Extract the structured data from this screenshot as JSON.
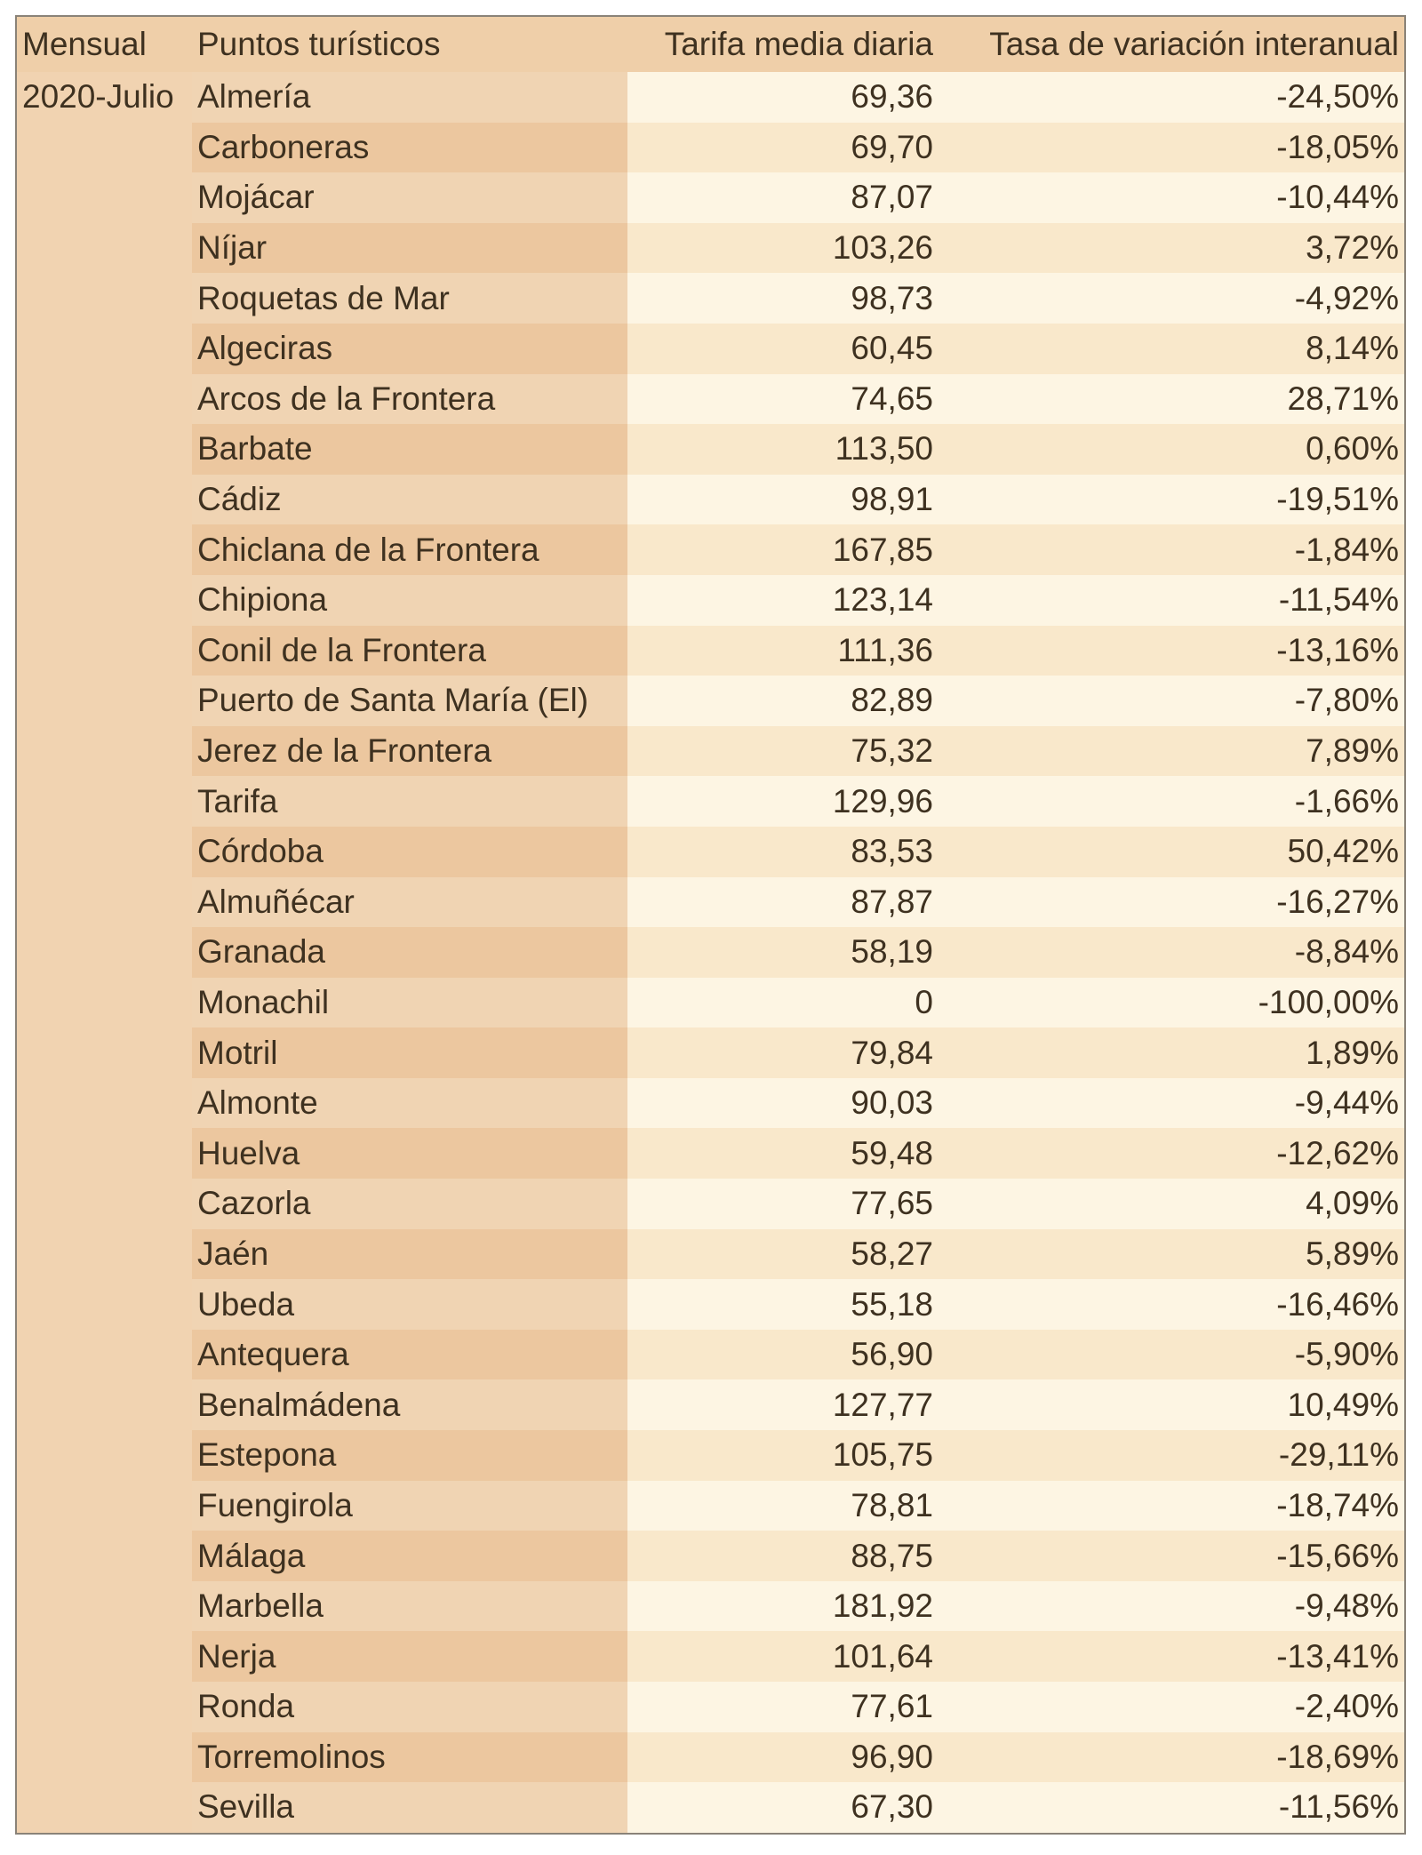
{
  "header": {
    "mensual": "Mensual",
    "puntos": "Puntos turísticos",
    "tarifa": "Tarifa media diaria",
    "tasa": "Tasa de variación interanual"
  },
  "period": "2020-Julio",
  "rows": [
    {
      "name": "Almería",
      "tarifa": "69,36",
      "tasa": "-24,50%"
    },
    {
      "name": "Carboneras",
      "tarifa": "69,70",
      "tasa": "-18,05%"
    },
    {
      "name": "Mojácar",
      "tarifa": "87,07",
      "tasa": "-10,44%"
    },
    {
      "name": "Níjar",
      "tarifa": "103,26",
      "tasa": "3,72%"
    },
    {
      "name": "Roquetas de Mar",
      "tarifa": "98,73",
      "tasa": "-4,92%"
    },
    {
      "name": "Algeciras",
      "tarifa": "60,45",
      "tasa": "8,14%"
    },
    {
      "name": "Arcos de la Frontera",
      "tarifa": "74,65",
      "tasa": "28,71%"
    },
    {
      "name": "Barbate",
      "tarifa": "113,50",
      "tasa": "0,60%"
    },
    {
      "name": "Cádiz",
      "tarifa": "98,91",
      "tasa": "-19,51%"
    },
    {
      "name": "Chiclana de la Frontera",
      "tarifa": "167,85",
      "tasa": "-1,84%"
    },
    {
      "name": "Chipiona",
      "tarifa": "123,14",
      "tasa": "-11,54%"
    },
    {
      "name": "Conil de la Frontera",
      "tarifa": "111,36",
      "tasa": "-13,16%"
    },
    {
      "name": "Puerto de Santa María (El)",
      "tarifa": "82,89",
      "tasa": "-7,80%"
    },
    {
      "name": "Jerez de la Frontera",
      "tarifa": "75,32",
      "tasa": "7,89%"
    },
    {
      "name": "Tarifa",
      "tarifa": "129,96",
      "tasa": "-1,66%"
    },
    {
      "name": "Córdoba",
      "tarifa": "83,53",
      "tasa": "50,42%"
    },
    {
      "name": "Almuñécar",
      "tarifa": "87,87",
      "tasa": "-16,27%"
    },
    {
      "name": "Granada",
      "tarifa": "58,19",
      "tasa": "-8,84%"
    },
    {
      "name": "Monachil",
      "tarifa": "0",
      "tasa": "-100,00%"
    },
    {
      "name": "Motril",
      "tarifa": "79,84",
      "tasa": "1,89%"
    },
    {
      "name": "Almonte",
      "tarifa": "90,03",
      "tasa": "-9,44%"
    },
    {
      "name": "Huelva",
      "tarifa": "59,48",
      "tasa": "-12,62%"
    },
    {
      "name": "Cazorla",
      "tarifa": "77,65",
      "tasa": "4,09%"
    },
    {
      "name": "Jaén",
      "tarifa": "58,27",
      "tasa": "5,89%"
    },
    {
      "name": "Ubeda",
      "tarifa": "55,18",
      "tasa": "-16,46%"
    },
    {
      "name": "Antequera",
      "tarifa": "56,90",
      "tasa": "-5,90%"
    },
    {
      "name": "Benalmádena",
      "tarifa": "127,77",
      "tasa": "10,49%"
    },
    {
      "name": "Estepona",
      "tarifa": "105,75",
      "tasa": "-29,11%"
    },
    {
      "name": "Fuengirola",
      "tarifa": "78,81",
      "tasa": "-18,74%"
    },
    {
      "name": "Málaga",
      "tarifa": "88,75",
      "tasa": "-15,66%"
    },
    {
      "name": "Marbella",
      "tarifa": "181,92",
      "tasa": "-9,48%"
    },
    {
      "name": "Nerja",
      "tarifa": "101,64",
      "tasa": "-13,41%"
    },
    {
      "name": "Ronda",
      "tarifa": "77,61",
      "tasa": "-2,40%"
    },
    {
      "name": "Torremolinos",
      "tarifa": "96,90",
      "tasa": "-18,69%"
    },
    {
      "name": "Sevilla",
      "tarifa": "67,30",
      "tasa": "-11,56%"
    }
  ]
}
